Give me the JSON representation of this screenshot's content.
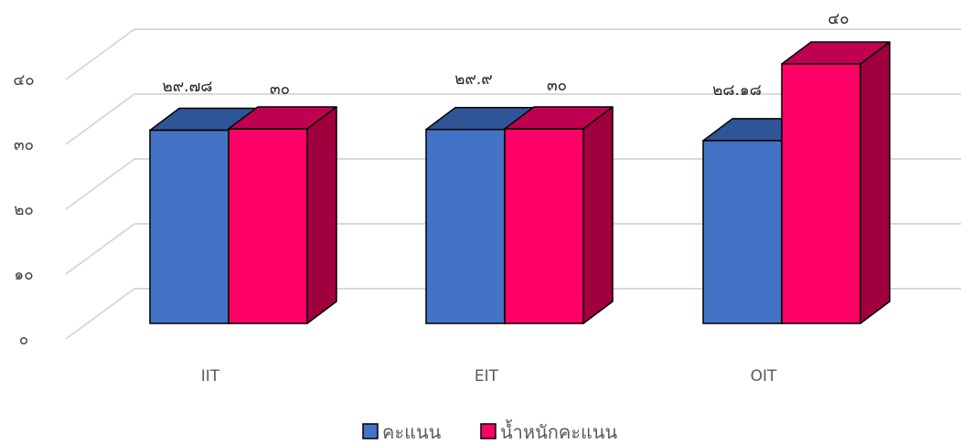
{
  "chart_data": {
    "type": "bar",
    "categories": [
      "IIT",
      "EIT",
      "OIT"
    ],
    "series": [
      {
        "name": "คะแนน",
        "values": [
          29.78,
          29.9,
          28.18
        ],
        "labels": [
          "๒๙.๗๘",
          "๒๙.๙",
          "๒๘.๑๘"
        ],
        "color": "#4472C4",
        "top_color": "#2F5597",
        "side_color": "#203864"
      },
      {
        "name": "น้ำหนักคะแนน",
        "values": [
          30,
          30,
          40
        ],
        "labels": [
          "๓๐",
          "๓๐",
          "๔๐"
        ],
        "color": "#FF0066",
        "top_color": "#C00050",
        "side_color": "#A0003E"
      }
    ],
    "yticks": [
      0,
      10,
      20,
      30,
      40
    ],
    "ytick_labels": [
      "๐",
      "๑๐",
      "๒๐",
      "๓๐",
      "๔๐"
    ],
    "ylim": [
      0,
      40
    ],
    "grid": true,
    "legend_position": "bottom",
    "title": "",
    "xlabel": "",
    "ylabel": ""
  }
}
